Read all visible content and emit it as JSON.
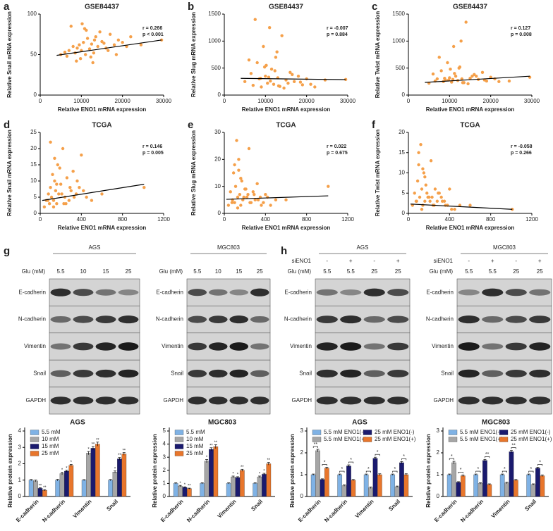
{
  "panel_labels": [
    "a",
    "b",
    "c",
    "d",
    "e",
    "f",
    "g",
    "h"
  ],
  "chart_data": [
    {
      "type": "scatter",
      "title": "GSE84437",
      "x_label": "Relative ENO1 mRNA expression",
      "y_label": "Relative Snail mRNA expression",
      "color": "#f5a04a",
      "xlim": [
        0,
        30000
      ],
      "xticks": [
        0,
        10000,
        20000,
        30000
      ],
      "ylim": [
        0,
        100
      ],
      "yticks": [
        0,
        50,
        100
      ],
      "x": [
        5000,
        6500,
        7000,
        8000,
        8500,
        9000,
        9500,
        10000,
        10500,
        11000,
        11500,
        12000,
        12500,
        13000,
        13500,
        14000,
        15000,
        16000,
        17000,
        18000,
        19000,
        20000,
        21000,
        22000,
        7500,
        9800,
        11200,
        12800,
        14500,
        16500,
        18500,
        10200,
        8800,
        13200,
        24500,
        29500,
        6000,
        15500,
        12300,
        10800
      ],
      "values": [
        50,
        48,
        55,
        60,
        52,
        58,
        62,
        55,
        65,
        50,
        70,
        57,
        63,
        52,
        72,
        60,
        66,
        58,
        75,
        62,
        68,
        65,
        60,
        72,
        85,
        45,
        80,
        40,
        78,
        55,
        50,
        88,
        42,
        68,
        62,
        68,
        53,
        64,
        47,
        82
      ],
      "fit": {
        "x": [
          4000,
          29500
        ],
        "values": [
          49,
          68
        ]
      },
      "annotations": [
        "r = 0.266",
        "p < 0.001"
      ]
    },
    {
      "type": "scatter",
      "title": "GSE84437",
      "x_label": "Relative ENO1 mRNA expression",
      "y_label": "Relative Slug mRNA expression",
      "color": "#f5a04a",
      "xlim": [
        0,
        30000
      ],
      "xticks": [
        0,
        10000,
        20000,
        30000
      ],
      "ylim": [
        0,
        1500
      ],
      "yticks": [
        0,
        500,
        1000,
        1500
      ],
      "x": [
        5000,
        6500,
        7000,
        8000,
        8500,
        9000,
        9500,
        10000,
        10500,
        11000,
        11500,
        12000,
        12500,
        13000,
        13500,
        14000,
        15000,
        16000,
        17000,
        18000,
        19000,
        20000,
        21000,
        22000,
        7500,
        9800,
        11200,
        12800,
        14500,
        16500,
        18500,
        10200,
        8800,
        13200,
        24500,
        29500,
        6000,
        15500,
        12300,
        10800
      ],
      "values": [
        250,
        400,
        180,
        600,
        300,
        150,
        900,
        350,
        220,
        1250,
        480,
        200,
        700,
        320,
        160,
        1100,
        280,
        420,
        250,
        350,
        190,
        300,
        200,
        150,
        1400,
        520,
        260,
        800,
        130,
        380,
        240,
        550,
        310,
        170,
        280,
        290,
        650,
        220,
        450,
        330
      ],
      "fit": {
        "x": [
          4000,
          29500
        ],
        "values": [
          310,
          285
        ]
      },
      "annotations": [
        "r = -0.007",
        "p = 0.884"
      ]
    },
    {
      "type": "scatter",
      "title": "GSE84437",
      "x_label": "Relative ENO1 mRNA expression",
      "y_label": "Relative Twist mRNA expression",
      "color": "#f5a04a",
      "xlim": [
        0,
        30000
      ],
      "xticks": [
        0,
        10000,
        20000,
        30000
      ],
      "ylim": [
        0,
        1500
      ],
      "yticks": [
        0,
        500,
        1000,
        1500
      ],
      "x": [
        5000,
        6500,
        7000,
        8000,
        8500,
        9000,
        9500,
        10000,
        10500,
        11000,
        11500,
        12000,
        12500,
        13000,
        13500,
        14000,
        15000,
        16000,
        17000,
        18000,
        19000,
        20000,
        21000,
        22000,
        7500,
        9800,
        11200,
        12800,
        14500,
        16500,
        18500,
        10200,
        8800,
        13200,
        24500,
        29500,
        6000,
        15500,
        12300,
        10800
      ],
      "values": [
        220,
        260,
        300,
        450,
        250,
        280,
        600,
        320,
        240,
        900,
        350,
        270,
        520,
        300,
        230,
        1350,
        310,
        380,
        290,
        420,
        260,
        330,
        300,
        250,
        700,
        280,
        400,
        1000,
        210,
        350,
        280,
        480,
        310,
        230,
        260,
        330,
        390,
        350,
        500,
        290
      ],
      "fit": {
        "x": [
          4000,
          29500
        ],
        "values": [
          235,
          350
        ]
      },
      "annotations": [
        "r = 0.127",
        "p = 0.008"
      ]
    },
    {
      "type": "scatter",
      "title": "TCGA",
      "x_label": "Relative ENO1 mRNA expression",
      "y_label": "Relative Snail mRNA expression",
      "color": "#f5a04a",
      "xlim": [
        0,
        1200
      ],
      "xticks": [
        0,
        400,
        800,
        1200
      ],
      "ylim": [
        0,
        25
      ],
      "yticks": [
        0,
        5,
        10,
        15,
        20,
        25
      ],
      "x": [
        40,
        60,
        80,
        90,
        100,
        110,
        120,
        130,
        140,
        150,
        160,
        170,
        180,
        200,
        220,
        240,
        260,
        280,
        300,
        320,
        350,
        380,
        400,
        450,
        500,
        100,
        130,
        160,
        190,
        210,
        250,
        290,
        330,
        360,
        420,
        600,
        1010,
        75,
        140,
        230
      ],
      "values": [
        2,
        4,
        6,
        3,
        8,
        5,
        12,
        4,
        10,
        7,
        3,
        15,
        6,
        9,
        20,
        5,
        11,
        4,
        7,
        13,
        6,
        8,
        18,
        5,
        4,
        22,
        2,
        9,
        14,
        6,
        3,
        8,
        5,
        10,
        7,
        6,
        8,
        4,
        17,
        3
      ],
      "fit": {
        "x": [
          20,
          1010
        ],
        "values": [
          4,
          9
        ]
      },
      "annotations": [
        "r = 0.146",
        "p = 0.005"
      ]
    },
    {
      "type": "scatter",
      "title": "TCGA",
      "x_label": "Relative ENO1 mRNA expression",
      "y_label": "Relative Slug mRNA expression",
      "color": "#f5a04a",
      "xlim": [
        0,
        1200
      ],
      "xticks": [
        0,
        400,
        800,
        1200
      ],
      "ylim": [
        0,
        30
      ],
      "yticks": [
        0,
        10,
        20,
        30
      ],
      "x": [
        40,
        60,
        80,
        90,
        100,
        110,
        120,
        130,
        140,
        150,
        160,
        170,
        180,
        200,
        220,
        240,
        260,
        280,
        300,
        320,
        350,
        380,
        400,
        450,
        500,
        100,
        130,
        160,
        190,
        210,
        250,
        290,
        330,
        360,
        420,
        600,
        1010,
        75,
        140,
        230
      ],
      "values": [
        3,
        8,
        5,
        15,
        4,
        10,
        27,
        6,
        20,
        7,
        3,
        12,
        5,
        9,
        6,
        24,
        4,
        8,
        5,
        11,
        6,
        4,
        7,
        3,
        5,
        18,
        2,
        13,
        6,
        9,
        4,
        7,
        5,
        3,
        6,
        5,
        10,
        4,
        16,
        7
      ],
      "fit": {
        "x": [
          20,
          1010
        ],
        "values": [
          5.2,
          6.5
        ]
      },
      "annotations": [
        "r = 0.022",
        "p = 0.675"
      ]
    },
    {
      "type": "scatter",
      "title": "TCGA",
      "x_label": "Relative ENO1 mRNA expression",
      "y_label": "Relative Twist mRNA expression",
      "color": "#f5a04a",
      "xlim": [
        0,
        1200
      ],
      "xticks": [
        0,
        400,
        800,
        1200
      ],
      "ylim": [
        0,
        20
      ],
      "yticks": [
        0,
        5,
        10,
        15,
        20
      ],
      "x": [
        40,
        60,
        80,
        90,
        100,
        110,
        120,
        130,
        140,
        150,
        160,
        170,
        180,
        200,
        220,
        240,
        260,
        280,
        300,
        320,
        350,
        380,
        400,
        450,
        500,
        100,
        130,
        160,
        190,
        210,
        250,
        290,
        330,
        360,
        420,
        600,
        1010,
        75,
        140,
        230
      ],
      "values": [
        2,
        5,
        3,
        8,
        12,
        4,
        17,
        6,
        2,
        10,
        3,
        7,
        5,
        4,
        13,
        2,
        6,
        3,
        5,
        4,
        3,
        2,
        6,
        1,
        2,
        15,
        1,
        9,
        4,
        3,
        2,
        5,
        3,
        2,
        1,
        2,
        1,
        3,
        11,
        4
      ],
      "fit": {
        "x": [
          20,
          1010
        ],
        "values": [
          2.3,
          1
        ]
      },
      "annotations": [
        "r = -0.058",
        "p = 0.266"
      ]
    },
    {
      "type": "bar",
      "title": "AGS",
      "y_label": "Relative protein expression",
      "categories": [
        "E-cadherin",
        "N-cadherin",
        "Vimentin",
        "Snail"
      ],
      "ylim": [
        0,
        4
      ],
      "yticks": [
        0,
        1,
        2,
        3,
        4
      ],
      "series": [
        {
          "name": "5.5 mM",
          "color": "#7fb2e5",
          "values": [
            1,
            1,
            1,
            1
          ],
          "errors": [
            0.04,
            0.05,
            0.03,
            0.04
          ],
          "sig": [
            null,
            null,
            null,
            null
          ]
        },
        {
          "name": "10  mM",
          "color": "#a6a6a6",
          "values": [
            0.95,
            1.4,
            2.65,
            1.5
          ],
          "errors": [
            0.05,
            0.08,
            0.1,
            0.06
          ],
          "sig": [
            null,
            "*",
            "*",
            "*"
          ]
        },
        {
          "name": "15  mM",
          "color": "#1a1a6e",
          "values": [
            0.5,
            1.55,
            2.95,
            2.3
          ],
          "errors": [
            0.03,
            0.05,
            0.1,
            0.08
          ],
          "sig": [
            "**",
            "*",
            "**",
            "**"
          ]
        },
        {
          "name": "25  mM",
          "color": "#e8762c",
          "values": [
            0.38,
            1.9,
            3.2,
            2.6
          ],
          "errors": [
            0.04,
            0.06,
            0.12,
            0.08
          ],
          "sig": [
            "**",
            "*",
            "**",
            "**"
          ]
        }
      ]
    },
    {
      "type": "bar",
      "title": "MGC803",
      "y_label": "Relative protein expression",
      "categories": [
        "E-cadherin",
        "N-cadherin",
        "Vimentin",
        "Snail"
      ],
      "ylim": [
        0,
        5
      ],
      "yticks": [
        0,
        1,
        2,
        3,
        4,
        5
      ],
      "series": [
        {
          "name": "5.5 mM",
          "color": "#7fb2e5",
          "values": [
            1,
            1,
            1,
            1
          ],
          "errors": [
            0.04,
            0.04,
            0.04,
            0.04
          ],
          "sig": [
            null,
            null,
            null,
            null
          ]
        },
        {
          "name": "10  mM",
          "color": "#a6a6a6",
          "values": [
            0.8,
            2.7,
            1.5,
            1.5
          ],
          "errors": [
            0.05,
            0.12,
            0.06,
            0.06
          ],
          "sig": [
            "*",
            "*",
            "*",
            "*"
          ]
        },
        {
          "name": "15  mM",
          "color": "#1a1a6e",
          "values": [
            0.7,
            3.6,
            1.45,
            1.7
          ],
          "errors": [
            0.04,
            0.12,
            0.06,
            0.07
          ],
          "sig": [
            "*",
            "**",
            "*",
            "*"
          ]
        },
        {
          "name": "25  mM",
          "color": "#e8762c",
          "values": [
            0.6,
            3.8,
            2.0,
            2.5
          ],
          "errors": [
            0.04,
            0.15,
            0.08,
            0.1
          ],
          "sig": [
            "**",
            "**",
            "**",
            "**"
          ]
        }
      ]
    },
    {
      "type": "bar",
      "title": "AGS",
      "y_label": "Relative protein expression",
      "categories": [
        "E-cadherin",
        "N-cadherin",
        "Vimentin",
        "Snail"
      ],
      "ylim": [
        0,
        3
      ],
      "yticks": [
        0,
        1,
        2,
        3
      ],
      "series": [
        {
          "name": "5.5 mM ENO1(-)",
          "color": "#7fb2e5",
          "values": [
            1,
            1,
            1,
            1
          ],
          "errors": [
            0.03,
            0.03,
            0.03,
            0.03
          ],
          "sig": [
            null,
            null,
            null,
            null
          ]
        },
        {
          "name": "5.5 mM ENO1(+)",
          "color": "#a6a6a6",
          "values": [
            2.1,
            0.5,
            0.4,
            0.45
          ],
          "errors": [
            0.06,
            0.03,
            0.03,
            0.03
          ],
          "sig": [
            "**",
            "*",
            "*",
            "*"
          ]
        },
        {
          "name": "25 mM ENO1(-)",
          "color": "#1a1a6e",
          "values": [
            0.78,
            1.4,
            1.75,
            1.55
          ],
          "errors": [
            0.03,
            0.05,
            0.05,
            0.05
          ],
          "sig": [
            null,
            null,
            null,
            null
          ]
        },
        {
          "name": "25 mM ENO1(+)",
          "color": "#e8762c",
          "values": [
            1.3,
            0.75,
            1.0,
            1.0
          ],
          "errors": [
            0.04,
            0.03,
            0.04,
            0.04
          ],
          "sig": [
            "*",
            "*",
            "*",
            "*"
          ]
        }
      ]
    },
    {
      "type": "bar",
      "title": "MGC803",
      "y_label": "Relative protein expression",
      "categories": [
        "E-cadherin",
        "N-cadherin",
        "Vimentin",
        "Snail"
      ],
      "ylim": [
        0,
        3
      ],
      "yticks": [
        0,
        1,
        2,
        3
      ],
      "series": [
        {
          "name": "5.5 mM ENO1(-)",
          "color": "#7fb2e5",
          "values": [
            1,
            1,
            1,
            1
          ],
          "errors": [
            0.03,
            0.03,
            0.03,
            0.03
          ],
          "sig": [
            null,
            null,
            null,
            null
          ]
        },
        {
          "name": "5.5 mM ENO1(+)",
          "color": "#a6a6a6",
          "values": [
            1.55,
            0.6,
            0.62,
            0.55
          ],
          "errors": [
            0.06,
            0.03,
            0.03,
            0.03
          ],
          "sig": [
            "*",
            "*",
            "*",
            "*"
          ]
        },
        {
          "name": "25 mM ENO1(-)",
          "color": "#1a1a6e",
          "values": [
            0.65,
            1.65,
            2.05,
            1.3
          ],
          "errors": [
            0.03,
            0.05,
            0.06,
            0.04
          ],
          "sig": [
            null,
            null,
            null,
            null
          ]
        },
        {
          "name": "25 mM ENO1(+)",
          "color": "#e8762c",
          "values": [
            0.95,
            0.55,
            0.75,
            0.95
          ],
          "errors": [
            0.04,
            0.03,
            0.03,
            0.04
          ],
          "sig": [
            "*",
            "**",
            "**",
            "*"
          ]
        }
      ]
    }
  ],
  "blots": [
    {
      "title": "AGS",
      "header": [
        {
          "label": "Glu (mM)",
          "lanes": [
            "5.5",
            "10",
            "15",
            "25"
          ]
        }
      ],
      "rows": [
        "E-cadherin",
        "N-cadherin",
        "Vimentin",
        "Snail",
        "GAPDH"
      ]
    },
    {
      "title": "MGC803",
      "header": [
        {
          "label": "Glu (mM)",
          "lanes": [
            "5.5",
            "10",
            "15",
            "25"
          ]
        }
      ],
      "rows": [
        "E-cadherin",
        "N-cadherin",
        "Vimentin",
        "Snail",
        "GAPDH"
      ]
    },
    {
      "title": "AGS",
      "header": [
        {
          "label": "siENO1",
          "lanes": [
            "-",
            "+",
            "-",
            "+"
          ]
        },
        {
          "label": "Glu (mM)",
          "lanes": [
            "5.5",
            "5.5",
            "25",
            "25"
          ]
        }
      ],
      "rows": [
        "E-cadherin",
        "N-cadherin",
        "Vimentin",
        "Snail",
        "GAPDH"
      ]
    },
    {
      "title": "MGC803",
      "header": [
        {
          "label": "siENO1",
          "lanes": [
            "-",
            "+",
            "-",
            "+"
          ]
        },
        {
          "label": "Glu (mM)",
          "lanes": [
            "5.5",
            "5.5",
            "25",
            "25"
          ]
        }
      ],
      "rows": [
        "E-cadherin",
        "N-cadherin",
        "Vimentin",
        "Snail",
        "GAPDH"
      ]
    }
  ]
}
